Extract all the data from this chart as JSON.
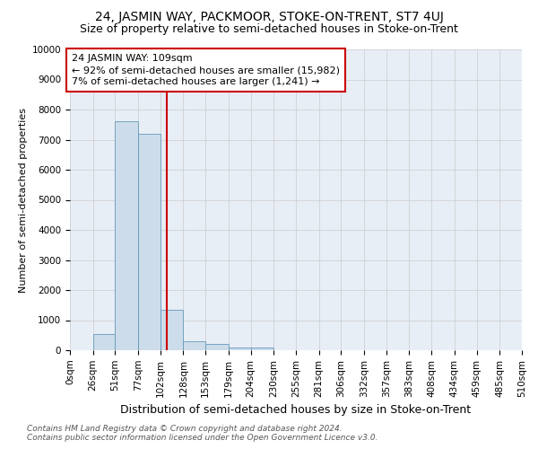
{
  "title": "24, JASMIN WAY, PACKMOOR, STOKE-ON-TRENT, ST7 4UJ",
  "subtitle": "Size of property relative to semi-detached houses in Stoke-on-Trent",
  "xlabel": "Distribution of semi-detached houses by size in Stoke-on-Trent",
  "ylabel": "Number of semi-detached properties",
  "footnote1": "Contains HM Land Registry data © Crown copyright and database right 2024.",
  "footnote2": "Contains public sector information licensed under the Open Government Licence v3.0.",
  "bin_edges": [
    0,
    26,
    51,
    77,
    102,
    128,
    153,
    179,
    204,
    230,
    255,
    281,
    306,
    332,
    357,
    383,
    408,
    434,
    459,
    485,
    510
  ],
  "bar_heights": [
    0,
    550,
    7600,
    7200,
    1350,
    300,
    200,
    100,
    80,
    0,
    0,
    0,
    0,
    0,
    0,
    0,
    0,
    0,
    0,
    0
  ],
  "bar_color": "#cddcea",
  "bar_edgecolor": "#6699bb",
  "property_size": 109,
  "vline_color": "#cc0000",
  "annotation_line1": "24 JASMIN WAY: 109sqm",
  "annotation_line2": "← 92% of semi-detached houses are smaller (15,982)",
  "annotation_line3": "7% of semi-detached houses are larger (1,241) →",
  "annotation_box_edgecolor": "#cc0000",
  "annotation_box_facecolor": "#ffffff",
  "ylim": [
    0,
    10000
  ],
  "yticks": [
    0,
    1000,
    2000,
    3000,
    4000,
    5000,
    6000,
    7000,
    8000,
    9000,
    10000
  ],
  "title_fontsize": 10,
  "subtitle_fontsize": 9,
  "xlabel_fontsize": 9,
  "ylabel_fontsize": 8,
  "tick_fontsize": 7.5,
  "annotation_fontsize": 8,
  "footnote_fontsize": 6.5
}
